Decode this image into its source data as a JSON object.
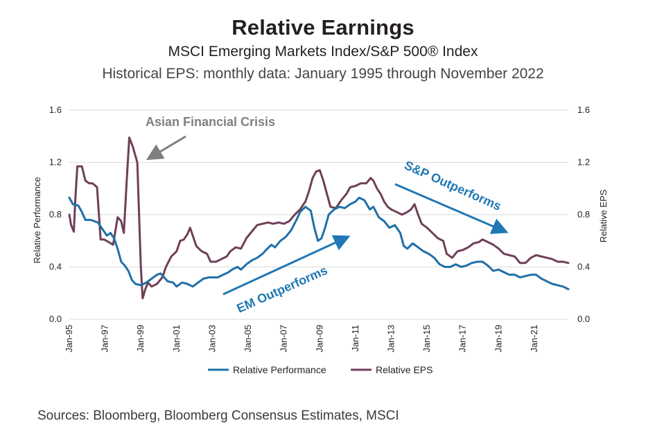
{
  "title": "Relative Earnings",
  "subtitle": "MSCI Emerging Markets Index/S&P 500® Index",
  "subtitle2": "Historical EPS: monthly data: January 1995 through November 2022",
  "source": "Sources: Bloomberg, Bloomberg Consensus Estimates, MSCI",
  "colors": {
    "relative_performance": "#1f6fa8",
    "relative_eps": "#6e3f58",
    "annotation_gray": "#7f7f7f",
    "annotation_blue": "#1f78b4",
    "grid": "#d9d9d9"
  },
  "chart_data": {
    "type": "line",
    "xlabel": "",
    "ylabel": "Relative Performance",
    "y2label": "Relative EPS",
    "ylim": [
      0,
      1.6
    ],
    "y2lim": [
      0,
      1.6
    ],
    "xlim": [
      1995.0,
      2022.9
    ],
    "yticks": [
      "0.0",
      "0.4",
      "0.8",
      "1.2",
      "1.6"
    ],
    "y2ticks": [
      "0.0",
      "0.4",
      "0.8",
      "1.2",
      "1.6"
    ],
    "xticks": [
      {
        "x": 1995,
        "label": "Jan-95"
      },
      {
        "x": 1997,
        "label": "Jan-97"
      },
      {
        "x": 1999,
        "label": "Jan-99"
      },
      {
        "x": 2001,
        "label": "Jan-01"
      },
      {
        "x": 2003,
        "label": "Jan-03"
      },
      {
        "x": 2005,
        "label": "Jan-05"
      },
      {
        "x": 2007,
        "label": "Jan-07"
      },
      {
        "x": 2009,
        "label": "Jan-09"
      },
      {
        "x": 2011,
        "label": "Jan-11"
      },
      {
        "x": 2013,
        "label": "Jan-13"
      },
      {
        "x": 2015,
        "label": "Jan-15"
      },
      {
        "x": 2017,
        "label": "Jan-17"
      },
      {
        "x": 2019,
        "label": "Jan-19"
      },
      {
        "x": 2021,
        "label": "Jan-21"
      }
    ],
    "grid": "horizontal",
    "legend_position": "bottom-center",
    "series": [
      {
        "name": "Relative Performance",
        "color": "#1f6fa8",
        "points": [
          [
            1995.0,
            0.93
          ],
          [
            1995.2,
            0.88
          ],
          [
            1995.5,
            0.87
          ],
          [
            1995.7,
            0.82
          ],
          [
            1995.9,
            0.76
          ],
          [
            1996.2,
            0.76
          ],
          [
            1996.6,
            0.74
          ],
          [
            1996.9,
            0.68
          ],
          [
            1997.1,
            0.64
          ],
          [
            1997.3,
            0.66
          ],
          [
            1997.5,
            0.62
          ],
          [
            1997.7,
            0.54
          ],
          [
            1997.9,
            0.44
          ],
          [
            1998.1,
            0.41
          ],
          [
            1998.3,
            0.37
          ],
          [
            1998.5,
            0.3
          ],
          [
            1998.7,
            0.27
          ],
          [
            1999.0,
            0.26
          ],
          [
            1999.3,
            0.28
          ],
          [
            1999.6,
            0.31
          ],
          [
            1999.9,
            0.34
          ],
          [
            2000.1,
            0.35
          ],
          [
            2000.3,
            0.32
          ],
          [
            2000.5,
            0.29
          ],
          [
            2000.8,
            0.28
          ],
          [
            2001.0,
            0.25
          ],
          [
            2001.3,
            0.28
          ],
          [
            2001.6,
            0.27
          ],
          [
            2001.9,
            0.25
          ],
          [
            2002.2,
            0.28
          ],
          [
            2002.5,
            0.31
          ],
          [
            2002.8,
            0.32
          ],
          [
            2003.0,
            0.32
          ],
          [
            2003.3,
            0.32
          ],
          [
            2003.6,
            0.34
          ],
          [
            2003.9,
            0.36
          ],
          [
            2004.1,
            0.38
          ],
          [
            2004.4,
            0.4
          ],
          [
            2004.6,
            0.38
          ],
          [
            2004.9,
            0.42
          ],
          [
            2005.2,
            0.45
          ],
          [
            2005.5,
            0.47
          ],
          [
            2005.8,
            0.5
          ],
          [
            2006.0,
            0.53
          ],
          [
            2006.3,
            0.57
          ],
          [
            2006.5,
            0.55
          ],
          [
            2006.8,
            0.6
          ],
          [
            2007.1,
            0.63
          ],
          [
            2007.4,
            0.68
          ],
          [
            2007.7,
            0.76
          ],
          [
            2007.9,
            0.82
          ],
          [
            2008.2,
            0.86
          ],
          [
            2008.5,
            0.83
          ],
          [
            2008.7,
            0.7
          ],
          [
            2008.9,
            0.6
          ],
          [
            2009.1,
            0.62
          ],
          [
            2009.3,
            0.7
          ],
          [
            2009.5,
            0.8
          ],
          [
            2009.8,
            0.84
          ],
          [
            2010.1,
            0.86
          ],
          [
            2010.4,
            0.85
          ],
          [
            2010.7,
            0.88
          ],
          [
            2011.0,
            0.9
          ],
          [
            2011.2,
            0.93
          ],
          [
            2011.5,
            0.91
          ],
          [
            2011.8,
            0.84
          ],
          [
            2012.0,
            0.86
          ],
          [
            2012.3,
            0.78
          ],
          [
            2012.6,
            0.75
          ],
          [
            2012.9,
            0.7
          ],
          [
            2013.2,
            0.72
          ],
          [
            2013.5,
            0.66
          ],
          [
            2013.7,
            0.56
          ],
          [
            2013.9,
            0.54
          ],
          [
            2014.2,
            0.58
          ],
          [
            2014.5,
            0.55
          ],
          [
            2014.8,
            0.52
          ],
          [
            2015.1,
            0.5
          ],
          [
            2015.4,
            0.47
          ],
          [
            2015.7,
            0.42
          ],
          [
            2016.0,
            0.4
          ],
          [
            2016.3,
            0.4
          ],
          [
            2016.6,
            0.42
          ],
          [
            2016.9,
            0.4
          ],
          [
            2017.2,
            0.41
          ],
          [
            2017.5,
            0.43
          ],
          [
            2017.8,
            0.44
          ],
          [
            2018.1,
            0.44
          ],
          [
            2018.4,
            0.41
          ],
          [
            2018.7,
            0.37
          ],
          [
            2019.0,
            0.38
          ],
          [
            2019.3,
            0.36
          ],
          [
            2019.6,
            0.34
          ],
          [
            2019.9,
            0.34
          ],
          [
            2020.2,
            0.32
          ],
          [
            2020.5,
            0.33
          ],
          [
            2020.8,
            0.34
          ],
          [
            2021.1,
            0.34
          ],
          [
            2021.4,
            0.31
          ],
          [
            2021.7,
            0.29
          ],
          [
            2022.0,
            0.27
          ],
          [
            2022.3,
            0.26
          ],
          [
            2022.6,
            0.25
          ],
          [
            2022.9,
            0.23
          ]
        ]
      },
      {
        "name": "Relative EPS",
        "color": "#6e3f58",
        "points": [
          [
            1995.0,
            0.8
          ],
          [
            1995.1,
            0.72
          ],
          [
            1995.25,
            0.67
          ],
          [
            1995.35,
            0.95
          ],
          [
            1995.45,
            1.17
          ],
          [
            1995.7,
            1.17
          ],
          [
            1995.9,
            1.06
          ],
          [
            1996.1,
            1.04
          ],
          [
            1996.3,
            1.04
          ],
          [
            1996.55,
            1.01
          ],
          [
            1996.75,
            0.61
          ],
          [
            1996.95,
            0.61
          ],
          [
            1997.2,
            0.59
          ],
          [
            1997.45,
            0.57
          ],
          [
            1997.7,
            0.78
          ],
          [
            1997.9,
            0.75
          ],
          [
            1998.05,
            0.66
          ],
          [
            1998.2,
            1.04
          ],
          [
            1998.35,
            1.39
          ],
          [
            1998.55,
            1.32
          ],
          [
            1998.8,
            1.2
          ],
          [
            1999.0,
            0.4
          ],
          [
            1999.1,
            0.16
          ],
          [
            1999.25,
            0.23
          ],
          [
            1999.4,
            0.28
          ],
          [
            1999.6,
            0.25
          ],
          [
            1999.9,
            0.27
          ],
          [
            2000.2,
            0.32
          ],
          [
            2000.4,
            0.4
          ],
          [
            2000.7,
            0.48
          ],
          [
            2001.0,
            0.52
          ],
          [
            2001.2,
            0.6
          ],
          [
            2001.4,
            0.61
          ],
          [
            2001.6,
            0.65
          ],
          [
            2001.75,
            0.7
          ],
          [
            2001.9,
            0.64
          ],
          [
            2002.1,
            0.56
          ],
          [
            2002.4,
            0.52
          ],
          [
            2002.7,
            0.5
          ],
          [
            2002.9,
            0.44
          ],
          [
            2003.2,
            0.44
          ],
          [
            2003.5,
            0.46
          ],
          [
            2003.8,
            0.48
          ],
          [
            2004.0,
            0.52
          ],
          [
            2004.3,
            0.55
          ],
          [
            2004.6,
            0.54
          ],
          [
            2004.9,
            0.62
          ],
          [
            2005.2,
            0.67
          ],
          [
            2005.5,
            0.72
          ],
          [
            2005.8,
            0.73
          ],
          [
            2006.1,
            0.74
          ],
          [
            2006.4,
            0.73
          ],
          [
            2006.7,
            0.74
          ],
          [
            2007.0,
            0.73
          ],
          [
            2007.3,
            0.75
          ],
          [
            2007.6,
            0.8
          ],
          [
            2007.9,
            0.84
          ],
          [
            2008.2,
            0.9
          ],
          [
            2008.4,
            0.98
          ],
          [
            2008.6,
            1.08
          ],
          [
            2008.8,
            1.13
          ],
          [
            2009.0,
            1.14
          ],
          [
            2009.2,
            1.06
          ],
          [
            2009.4,
            0.96
          ],
          [
            2009.6,
            0.86
          ],
          [
            2009.9,
            0.85
          ],
          [
            2010.2,
            0.91
          ],
          [
            2010.5,
            0.96
          ],
          [
            2010.7,
            1.01
          ],
          [
            2011.0,
            1.02
          ],
          [
            2011.3,
            1.04
          ],
          [
            2011.6,
            1.04
          ],
          [
            2011.85,
            1.08
          ],
          [
            2012.0,
            1.06
          ],
          [
            2012.2,
            1.0
          ],
          [
            2012.4,
            0.96
          ],
          [
            2012.6,
            0.9
          ],
          [
            2012.8,
            0.86
          ],
          [
            2013.0,
            0.84
          ],
          [
            2013.3,
            0.82
          ],
          [
            2013.6,
            0.8
          ],
          [
            2013.9,
            0.82
          ],
          [
            2014.1,
            0.84
          ],
          [
            2014.3,
            0.88
          ],
          [
            2014.5,
            0.8
          ],
          [
            2014.7,
            0.73
          ],
          [
            2015.0,
            0.7
          ],
          [
            2015.3,
            0.66
          ],
          [
            2015.6,
            0.62
          ],
          [
            2015.9,
            0.6
          ],
          [
            2016.1,
            0.5
          ],
          [
            2016.4,
            0.47
          ],
          [
            2016.7,
            0.52
          ],
          [
            2017.0,
            0.53
          ],
          [
            2017.3,
            0.55
          ],
          [
            2017.6,
            0.58
          ],
          [
            2017.9,
            0.59
          ],
          [
            2018.1,
            0.61
          ],
          [
            2018.4,
            0.59
          ],
          [
            2018.7,
            0.57
          ],
          [
            2019.0,
            0.54
          ],
          [
            2019.3,
            0.5
          ],
          [
            2019.6,
            0.49
          ],
          [
            2019.9,
            0.48
          ],
          [
            2020.2,
            0.43
          ],
          [
            2020.5,
            0.43
          ],
          [
            2020.8,
            0.47
          ],
          [
            2021.1,
            0.49
          ],
          [
            2021.4,
            0.48
          ],
          [
            2021.7,
            0.47
          ],
          [
            2022.0,
            0.46
          ],
          [
            2022.3,
            0.44
          ],
          [
            2022.6,
            0.44
          ],
          [
            2022.9,
            0.43
          ]
        ]
      }
    ],
    "annotations": [
      {
        "text": "Asian Financial Crisis"
      },
      {
        "text": "EM Outperforms"
      },
      {
        "text": "S&P Outperforms"
      }
    ]
  }
}
